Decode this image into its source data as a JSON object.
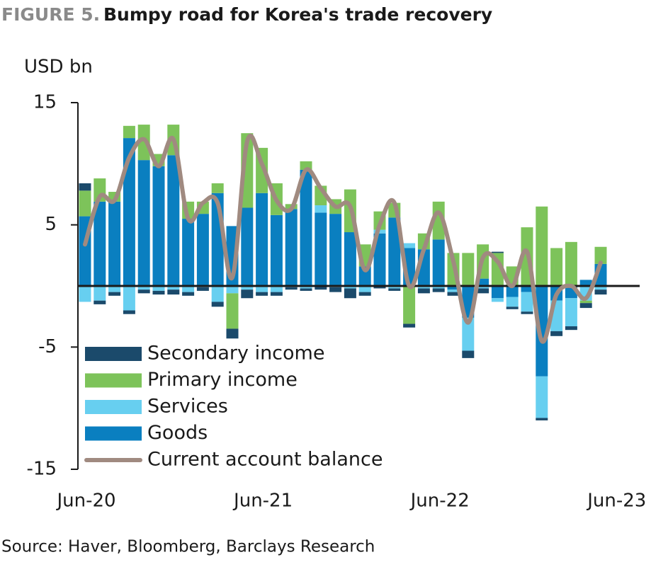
{
  "chart_data": {
    "type": "bar",
    "title_prefix": "FIGURE 5.",
    "title": "Bumpy road for Korea's trade recovery",
    "y_label": "USD bn",
    "source": "Source: Haver, Bloomberg, Barclays Research",
    "categories": [
      "Jun-20",
      null,
      null,
      null,
      null,
      null,
      null,
      null,
      null,
      null,
      null,
      null,
      "Jun-21",
      null,
      null,
      null,
      null,
      null,
      null,
      null,
      null,
      null,
      null,
      null,
      "Jun-22",
      null,
      null,
      null,
      null,
      null,
      null,
      null,
      null,
      null,
      null,
      null,
      "Jun-23"
    ],
    "ylim": [
      -15,
      15
    ],
    "yticks": [
      15,
      5,
      -5,
      -15
    ],
    "series": [
      {
        "name": "Secondary income",
        "color": "#1b4a6b",
        "values": [
          0.6,
          -0.3,
          -0.3,
          -0.3,
          -0.3,
          -0.3,
          -0.4,
          -0.3,
          -0.3,
          -0.4,
          -0.8,
          -0.7,
          -0.3,
          -0.3,
          -0.2,
          -0.2,
          -0.3,
          -0.4,
          -0.8,
          -0.3,
          -0.2,
          -0.2,
          -0.3,
          -0.4,
          -0.3,
          -0.3,
          -0.6,
          -0.4,
          0.1,
          -0.2,
          -0.2,
          -0.2,
          -0.4,
          -0.3,
          -0.4,
          -0.4,
          null
        ]
      },
      {
        "name": "Primary income",
        "color": "#7dc35a",
        "values": [
          2.1,
          1.9,
          0.8,
          1.0,
          2.9,
          1.0,
          2.5,
          1.4,
          1.0,
          0.8,
          -2.9,
          6.1,
          3.7,
          2.6,
          0.4,
          0.7,
          1.6,
          1.2,
          3.5,
          1.8,
          1.5,
          1.2,
          -3.1,
          1.3,
          3.1,
          2.7,
          2.7,
          2.8,
          2.7,
          1.6,
          4.8,
          6.5,
          3.1,
          3.6,
          -0.2,
          1.4,
          null
        ]
      },
      {
        "name": "Services",
        "color": "#67cff0",
        "values": [
          -1.3,
          -1.2,
          -0.5,
          -2.0,
          -0.3,
          -0.4,
          -0.3,
          -0.5,
          -0.1,
          -1.3,
          -0.6,
          -0.3,
          -0.5,
          -0.5,
          -0.1,
          -0.2,
          0.6,
          -0.1,
          -0.2,
          -0.5,
          0.3,
          -0.2,
          0.4,
          -0.2,
          -0.2,
          -0.2,
          -2.7,
          -0.2,
          -0.3,
          -0.8,
          -1.6,
          -3.4,
          -2.5,
          -2.3,
          -1.2,
          -0.3,
          null
        ]
      },
      {
        "name": "Goods",
        "color": "#0a7fc0",
        "values": [
          5.7,
          6.9,
          6.9,
          12.1,
          10.3,
          9.8,
          10.7,
          5.5,
          5.9,
          7.6,
          4.9,
          6.4,
          7.6,
          5.8,
          6.3,
          9.5,
          6.0,
          5.9,
          4.4,
          1.6,
          4.3,
          5.6,
          3.1,
          3.0,
          3.8,
          -0.3,
          -2.6,
          0.6,
          -1.0,
          -0.9,
          -0.5,
          -7.4,
          -1.2,
          -1.0,
          0.5,
          1.8,
          null
        ]
      },
      {
        "name": "Current account balance",
        "color": "#a08a80",
        "type": "line",
        "values": [
          3.4,
          7.3,
          7.0,
          10.5,
          12.0,
          9.8,
          12.0,
          5.5,
          6.8,
          6.8,
          0.7,
          11.8,
          10.0,
          7.0,
          6.3,
          9.5,
          8.0,
          6.5,
          6.5,
          1.3,
          5.0,
          6.8,
          0.0,
          3.0,
          6.0,
          2.0,
          -3.0,
          2.3,
          2.0,
          0.0,
          2.8,
          -4.5,
          -0.7,
          0.0,
          -1.0,
          1.9,
          null
        ]
      }
    ]
  }
}
